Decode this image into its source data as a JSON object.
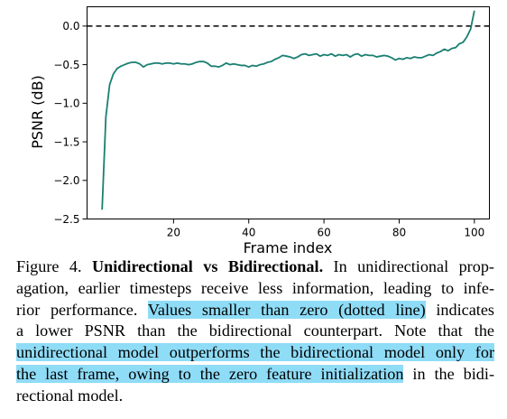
{
  "chart_data": {
    "type": "line",
    "xlabel": "Frame index",
    "ylabel": "PSNR (dB)",
    "xlim": [
      -3,
      104
    ],
    "ylim": [
      -2.5,
      0.25
    ],
    "xticks": [
      20,
      40,
      60,
      80,
      100
    ],
    "yticks": [
      0.0,
      -0.5,
      -1.0,
      -1.5,
      -2.0,
      -2.5
    ],
    "ytick_labels": [
      "0.0",
      "−0.5",
      "−1.0",
      "−1.5",
      "−2.0",
      "−2.5"
    ],
    "reference_line": {
      "y": 0.0,
      "style": "dashed",
      "color": "#000000"
    },
    "series": [
      {
        "color": "#1a7f72",
        "x": [
          1,
          2,
          3,
          4,
          5,
          6,
          7,
          8,
          9,
          10,
          11,
          12,
          13,
          14,
          15,
          16,
          17,
          18,
          19,
          20,
          21,
          22,
          23,
          24,
          25,
          26,
          27,
          28,
          29,
          30,
          31,
          32,
          33,
          34,
          35,
          36,
          37,
          38,
          39,
          40,
          41,
          42,
          43,
          44,
          45,
          46,
          47,
          48,
          49,
          50,
          51,
          52,
          53,
          54,
          55,
          56,
          57,
          58,
          59,
          60,
          61,
          62,
          63,
          64,
          65,
          66,
          67,
          68,
          69,
          70,
          71,
          72,
          73,
          74,
          75,
          76,
          77,
          78,
          79,
          80,
          81,
          82,
          83,
          84,
          85,
          86,
          87,
          88,
          89,
          90,
          91,
          92,
          93,
          94,
          95,
          96,
          97,
          98,
          99,
          100
        ],
        "y": [
          -2.38,
          -1.18,
          -0.76,
          -0.62,
          -0.55,
          -0.52,
          -0.5,
          -0.48,
          -0.47,
          -0.47,
          -0.49,
          -0.53,
          -0.5,
          -0.49,
          -0.48,
          -0.48,
          -0.49,
          -0.48,
          -0.48,
          -0.49,
          -0.48,
          -0.49,
          -0.49,
          -0.5,
          -0.49,
          -0.47,
          -0.46,
          -0.46,
          -0.48,
          -0.52,
          -0.52,
          -0.53,
          -0.51,
          -0.48,
          -0.5,
          -0.49,
          -0.5,
          -0.51,
          -0.51,
          -0.53,
          -0.51,
          -0.52,
          -0.5,
          -0.49,
          -0.47,
          -0.46,
          -0.43,
          -0.41,
          -0.38,
          -0.39,
          -0.4,
          -0.42,
          -0.4,
          -0.37,
          -0.36,
          -0.38,
          -0.37,
          -0.36,
          -0.39,
          -0.37,
          -0.38,
          -0.36,
          -0.39,
          -0.37,
          -0.38,
          -0.37,
          -0.4,
          -0.37,
          -0.36,
          -0.39,
          -0.37,
          -0.38,
          -0.38,
          -0.4,
          -0.39,
          -0.38,
          -0.39,
          -0.41,
          -0.44,
          -0.42,
          -0.43,
          -0.41,
          -0.42,
          -0.4,
          -0.41,
          -0.41,
          -0.39,
          -0.37,
          -0.38,
          -0.35,
          -0.33,
          -0.3,
          -0.32,
          -0.29,
          -0.28,
          -0.23,
          -0.21,
          -0.14,
          -0.04,
          0.2
        ]
      }
    ],
    "grid": false
  },
  "caption": {
    "line1_a": "Figure 4. ",
    "line1_bold": "Unidirectional vs Bidirectional.",
    "line1_b": " In unidirectional prop-",
    "line2": "agation, earlier timesteps receive less information, leading to infe-",
    "line3_a": "rior performance. ",
    "line3_hl": "Values smaller than zero (dotted line)",
    "line3_b": " indicates",
    "line4": "a lower PSNR than the bidirectional counterpart.  Note that the",
    "line5_hl": "unidirectional model outperforms the bidirectional model only for",
    "line6_hl": "the last frame, owing to the zero feature initialization",
    "line6_b": " in the bidi-",
    "line7": "rectional model."
  }
}
